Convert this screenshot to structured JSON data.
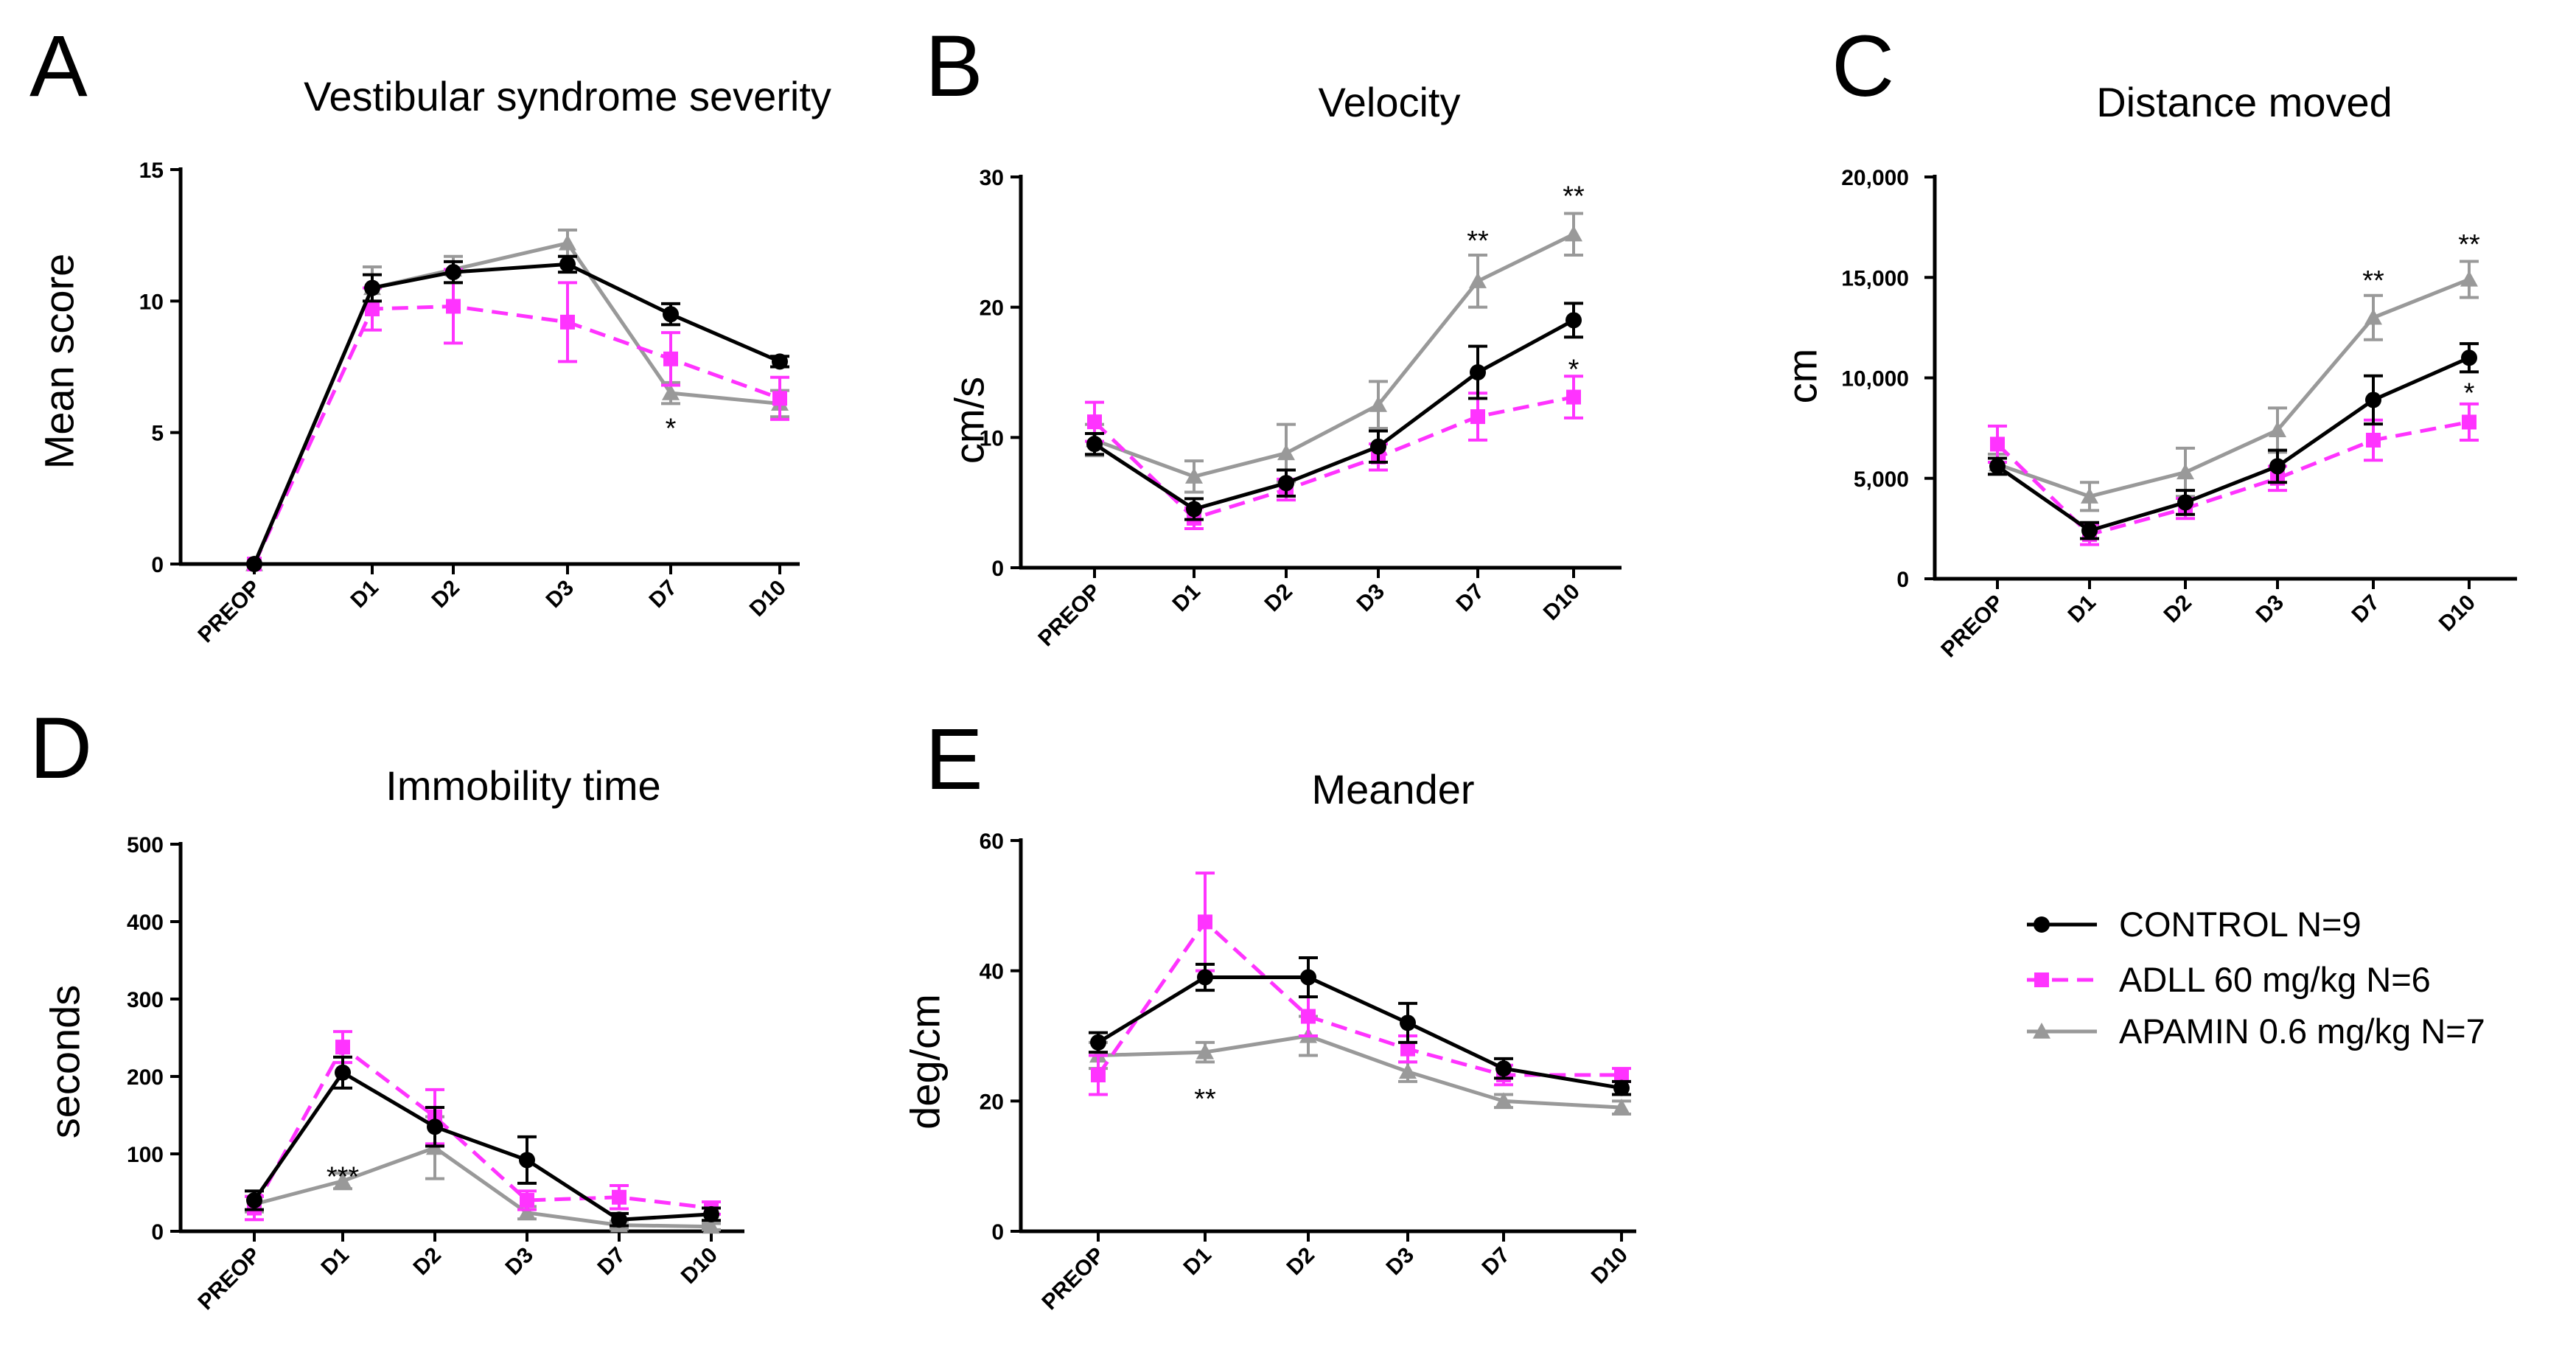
{
  "chart_data": [
    {
      "panel": "A",
      "type": "line",
      "title": "Vestibular syndrome severity",
      "ylabel": "Mean score",
      "ylim": [
        0,
        15
      ],
      "yticks": [
        0,
        5,
        10,
        15
      ],
      "ytick_labels": [
        "0",
        "5",
        "10",
        "15"
      ],
      "categories": [
        "PREOP",
        "D1",
        "D2",
        "D3",
        "D7",
        "D10"
      ],
      "series": [
        {
          "name": "CONTROL N=9",
          "values": [
            0,
            10.5,
            11.1,
            11.4,
            9.5,
            7.7
          ],
          "errors": [
            0,
            0.5,
            0.4,
            0.3,
            0.4,
            0.2
          ]
        },
        {
          "name": "ADLL 60 mg/kg N=6",
          "values": [
            0,
            9.7,
            9.8,
            9.2,
            7.8,
            6.3
          ],
          "errors": [
            0,
            0.8,
            1.4,
            1.5,
            1.0,
            0.8
          ]
        },
        {
          "name": "APAMIN 0.6 mg/kg N=7",
          "values": [
            0,
            10.5,
            11.2,
            12.2,
            6.5,
            6.1
          ],
          "errors": [
            0,
            0.8,
            0.5,
            0.5,
            0.4,
            0.5
          ]
        }
      ],
      "annotations": [
        {
          "category": "D7",
          "y": 5.2,
          "text": "*"
        }
      ]
    },
    {
      "panel": "B",
      "type": "line",
      "title": "Velocity",
      "ylabel": "cm/s",
      "ylim": [
        0,
        30
      ],
      "yticks": [
        0,
        10,
        20,
        30
      ],
      "ytick_labels": [
        "0",
        "10",
        "20",
        "30"
      ],
      "categories": [
        "PREOP",
        "D1",
        "D2",
        "D3",
        "D7",
        "D10"
      ],
      "series": [
        {
          "name": "CONTROL N=9",
          "values": [
            9.5,
            4.5,
            6.5,
            9.3,
            15.0,
            19.0
          ],
          "errors": [
            0.8,
            0.8,
            1.0,
            1.2,
            2.0,
            1.3
          ]
        },
        {
          "name": "ADLL 60 mg/kg N=6",
          "values": [
            11.2,
            3.8,
            6.0,
            8.5,
            11.6,
            13.1
          ],
          "errors": [
            1.5,
            0.8,
            0.8,
            1.0,
            1.8,
            1.6
          ]
        },
        {
          "name": "APAMIN 0.6 mg/kg N=7",
          "values": [
            9.8,
            7.0,
            8.8,
            12.5,
            22.0,
            25.6
          ],
          "errors": [
            1.2,
            1.2,
            2.2,
            1.8,
            2.0,
            1.6
          ]
        }
      ],
      "annotations": [
        {
          "category": "D7",
          "y": 25.2,
          "text": "**"
        },
        {
          "category": "D10",
          "y": 28.6,
          "text": "**"
        },
        {
          "category": "D10",
          "y": 15.3,
          "text": "*"
        }
      ]
    },
    {
      "panel": "C",
      "type": "line",
      "title": "Distance moved",
      "ylabel": "cm",
      "ylim": [
        0,
        20000
      ],
      "yticks": [
        0,
        5000,
        10000,
        15000,
        20000
      ],
      "ytick_labels": [
        "0",
        "5,000",
        "10,000",
        "15,000",
        "20,000"
      ],
      "categories": [
        "PREOP",
        "D1",
        "D2",
        "D3",
        "D7",
        "D10"
      ],
      "series": [
        {
          "name": "CONTROL N=9",
          "values": [
            5600,
            2400,
            3800,
            5600,
            8900,
            11000
          ],
          "errors": [
            400,
            400,
            600,
            800,
            1200,
            700
          ]
        },
        {
          "name": "ADLL 60 mg/kg N=6",
          "values": [
            6700,
            2200,
            3500,
            5000,
            6900,
            7800
          ],
          "errors": [
            900,
            500,
            500,
            600,
            1000,
            900
          ]
        },
        {
          "name": "APAMIN 0.6 mg/kg N=7",
          "values": [
            5700,
            4100,
            5300,
            7400,
            13000,
            14900
          ],
          "errors": [
            500,
            700,
            1200,
            1100,
            1100,
            900
          ]
        }
      ],
      "annotations": [
        {
          "category": "D7",
          "y": 14900,
          "text": "**"
        },
        {
          "category": "D10",
          "y": 16700,
          "text": "**"
        },
        {
          "category": "D10",
          "y": 9300,
          "text": "*"
        }
      ]
    },
    {
      "panel": "D",
      "type": "line",
      "title": "Immobility time",
      "ylabel": "seconds",
      "ylim": [
        0,
        500
      ],
      "yticks": [
        0,
        100,
        200,
        300,
        400,
        500
      ],
      "ytick_labels": [
        "0",
        "100",
        "200",
        "300",
        "400",
        "500"
      ],
      "categories": [
        "PREOP",
        "D1",
        "D2",
        "D3",
        "D7",
        "D10"
      ],
      "series": [
        {
          "name": "CONTROL N=9",
          "values": [
            40,
            205,
            135,
            92,
            15,
            22
          ],
          "errors": [
            12,
            20,
            25,
            30,
            8,
            8
          ]
        },
        {
          "name": "ADLL 60 mg/kg N=6",
          "values": [
            30,
            238,
            148,
            40,
            44,
            30
          ],
          "errors": [
            15,
            20,
            35,
            12,
            15,
            8
          ]
        },
        {
          "name": "APAMIN 0.6 mg/kg N=7",
          "values": [
            35,
            65,
            108,
            24,
            8,
            6
          ],
          "errors": [
            10,
            10,
            40,
            8,
            5,
            4
          ]
        }
      ],
      "annotations": [
        {
          "category": "D1",
          "y": 72,
          "text": "***"
        }
      ]
    },
    {
      "panel": "E",
      "type": "line",
      "title": "Meander",
      "ylabel": "deg/cm",
      "ylim": [
        0,
        60
      ],
      "yticks": [
        0,
        20,
        40,
        60
      ],
      "ytick_labels": [
        "0",
        "20",
        "40",
        "60"
      ],
      "categories": [
        "PREOP",
        "D1",
        "D2",
        "D3",
        "D7",
        "D10"
      ],
      "series": [
        {
          "name": "CONTROL N=9",
          "values": [
            29,
            39,
            39,
            32,
            25,
            22
          ],
          "errors": [
            1.5,
            2,
            3,
            3,
            1.5,
            1
          ]
        },
        {
          "name": "ADLL 60 mg/kg N=6",
          "values": [
            24,
            47.5,
            33,
            28,
            24,
            24
          ],
          "errors": [
            3,
            7.5,
            3,
            2,
            1.5,
            1
          ]
        },
        {
          "name": "APAMIN 0.6 mg/kg N=7",
          "values": [
            27,
            27.5,
            30,
            24.5,
            20,
            19
          ],
          "errors": [
            2,
            1.5,
            3,
            1.5,
            1,
            1
          ]
        }
      ],
      "annotations": [
        {
          "category": "D1",
          "y": 20.5,
          "text": "**"
        }
      ]
    }
  ],
  "legend": {
    "items": [
      {
        "label": "CONTROL N=9",
        "color": "#000000",
        "marker": "circle",
        "dash": "solid"
      },
      {
        "label": "ADLL 60 mg/kg N=6",
        "color": "#ff33ff",
        "marker": "square",
        "dash": "dashed"
      },
      {
        "label": "APAMIN 0.6 mg/kg N=7",
        "color": "#999999",
        "marker": "triangle",
        "dash": "solid"
      }
    ]
  },
  "series_colors": [
    "#000000",
    "#ff33ff",
    "#999999"
  ]
}
